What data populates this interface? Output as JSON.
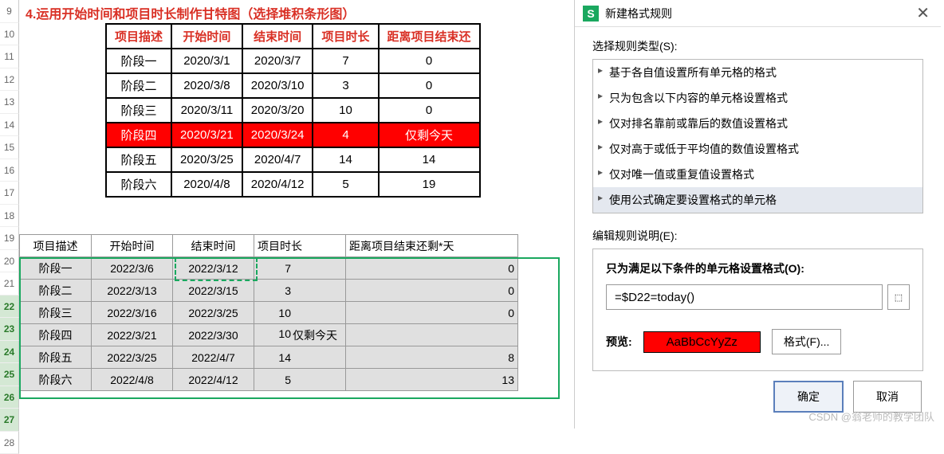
{
  "title": "4.运用开始时间和项目时长制作甘特图（选择堆积条形图）",
  "rows_visible": [
    "9",
    "10",
    "11",
    "12",
    "13",
    "14",
    "15",
    "16",
    "17",
    "18",
    "19",
    "20",
    "21",
    "22",
    "23",
    "24",
    "25",
    "26",
    "27",
    "28"
  ],
  "rows_selected": [
    "22",
    "23",
    "24",
    "25",
    "26",
    "27"
  ],
  "table1": {
    "headers": [
      "项目描述",
      "开始时间",
      "结束时间",
      "项目时长",
      "距离项目结束还"
    ],
    "rows": [
      [
        "阶段一",
        "2020/3/1",
        "2020/3/7",
        "7",
        "0"
      ],
      [
        "阶段二",
        "2020/3/8",
        "2020/3/10",
        "3",
        "0"
      ],
      [
        "阶段三",
        "2020/3/11",
        "2020/3/20",
        "10",
        "0"
      ],
      [
        "阶段四",
        "2020/3/21",
        "2020/3/24",
        "4",
        "仅剩今天"
      ],
      [
        "阶段五",
        "2020/3/25",
        "2020/4/7",
        "14",
        "14"
      ],
      [
        "阶段六",
        "2020/4/8",
        "2020/4/12",
        "5",
        "19"
      ]
    ],
    "highlight_row_index": 3,
    "border_color": "#000000",
    "header_color": "#d93025",
    "highlight_bg": "#ff0000",
    "highlight_fg": "#ffffff"
  },
  "table2": {
    "headers": [
      "项目描述",
      "开始时间",
      "结束时间",
      "项目时长",
      "",
      "距离项目结束还剩*天"
    ],
    "rows": [
      [
        "阶段一",
        "2022/3/6",
        "2022/3/12",
        "7",
        "",
        "0"
      ],
      [
        "阶段二",
        "2022/3/13",
        "2022/3/15",
        "3",
        "",
        "0"
      ],
      [
        "阶段三",
        "2022/3/16",
        "2022/3/25",
        "10",
        "",
        "0"
      ],
      [
        "阶段四",
        "2022/3/21",
        "2022/3/30",
        "10",
        "仅剩今天",
        ""
      ],
      [
        "阶段五",
        "2022/3/25",
        "2022/4/7",
        "14",
        "",
        "8"
      ],
      [
        "阶段六",
        "2022/4/8",
        "2022/4/12",
        "5",
        "",
        "13"
      ]
    ],
    "selection_border_color": "#1aa85f",
    "cell_bg": "#e0e0e0"
  },
  "dialog": {
    "app_logo": "S",
    "title": "新建格式规则",
    "section_type_label": "选择规则类型(S):",
    "rule_types": [
      "基于各自值设置所有单元格的格式",
      "只为包含以下内容的单元格设置格式",
      "仅对排名靠前或靠后的数值设置格式",
      "仅对高于或低于平均值的数值设置格式",
      "仅对唯一值或重复值设置格式",
      "使用公式确定要设置格式的单元格"
    ],
    "selected_rule_index": 5,
    "edit_label": "编辑规则说明(E):",
    "cond_title": "只为满足以下条件的单元格设置格式(O):",
    "formula": "=$D22=today()",
    "preview_label": "预览:",
    "preview_text": "AaBbCcYyZz",
    "preview_bg": "#ff0000",
    "format_btn": "格式(F)...",
    "ok": "确定",
    "cancel": "取消"
  },
  "watermark": "CSDN @翁老师的教学团队"
}
